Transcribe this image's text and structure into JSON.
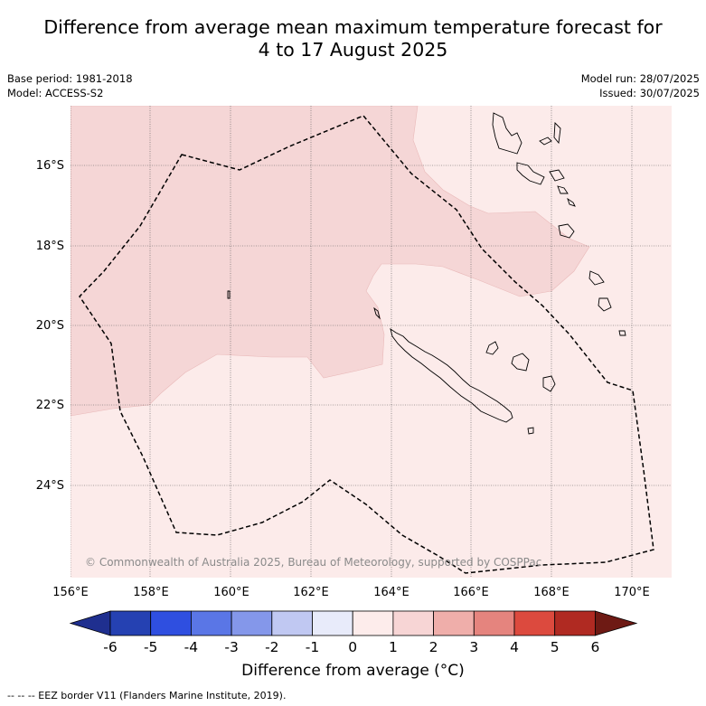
{
  "title_line1": "Difference from average mean maximum temperature forecast for",
  "title_line2": "4 to 17 August 2025",
  "base_period": "Base period: 1981-2018",
  "model": "Model: ACCESS-S2",
  "model_run": "Model run: 28/07/2025",
  "issued": "Issued: 30/07/2025",
  "copyright": "© Commonwealth of Australia 2025, Bureau of Meteorology, supported by COSPPac",
  "lat_labels": [
    "16°S",
    "18°S",
    "20°S",
    "22°S",
    "24°S"
  ],
  "lon_labels": [
    "156°E",
    "158°E",
    "160°E",
    "162°E",
    "164°E",
    "166°E",
    "168°E",
    "170°E"
  ],
  "colorbar": {
    "title": "Difference from average (°C)",
    "ticks": [
      "-6",
      "-5",
      "-4",
      "-3",
      "-2",
      "-1",
      "0",
      "1",
      "2",
      "3",
      "4",
      "5",
      "6"
    ],
    "colors": [
      "#1f2f8f",
      "#2541b2",
      "#2f4fe0",
      "#5a76e6",
      "#8497ea",
      "#c0c8f2",
      "#e8ebfa",
      "#fdeceb",
      "#f7d5d5",
      "#efaeaa",
      "#e5847e",
      "#dc4a3e",
      "#b02a22",
      "#6e1a14"
    ]
  },
  "map_fill_colors": {
    "band_0_1": "#fcebea",
    "band_1_2": "#f5d6d6"
  },
  "legend_footer": "-- -- -- EEZ border V11 (Flanders Marine Institute, 2019)."
}
